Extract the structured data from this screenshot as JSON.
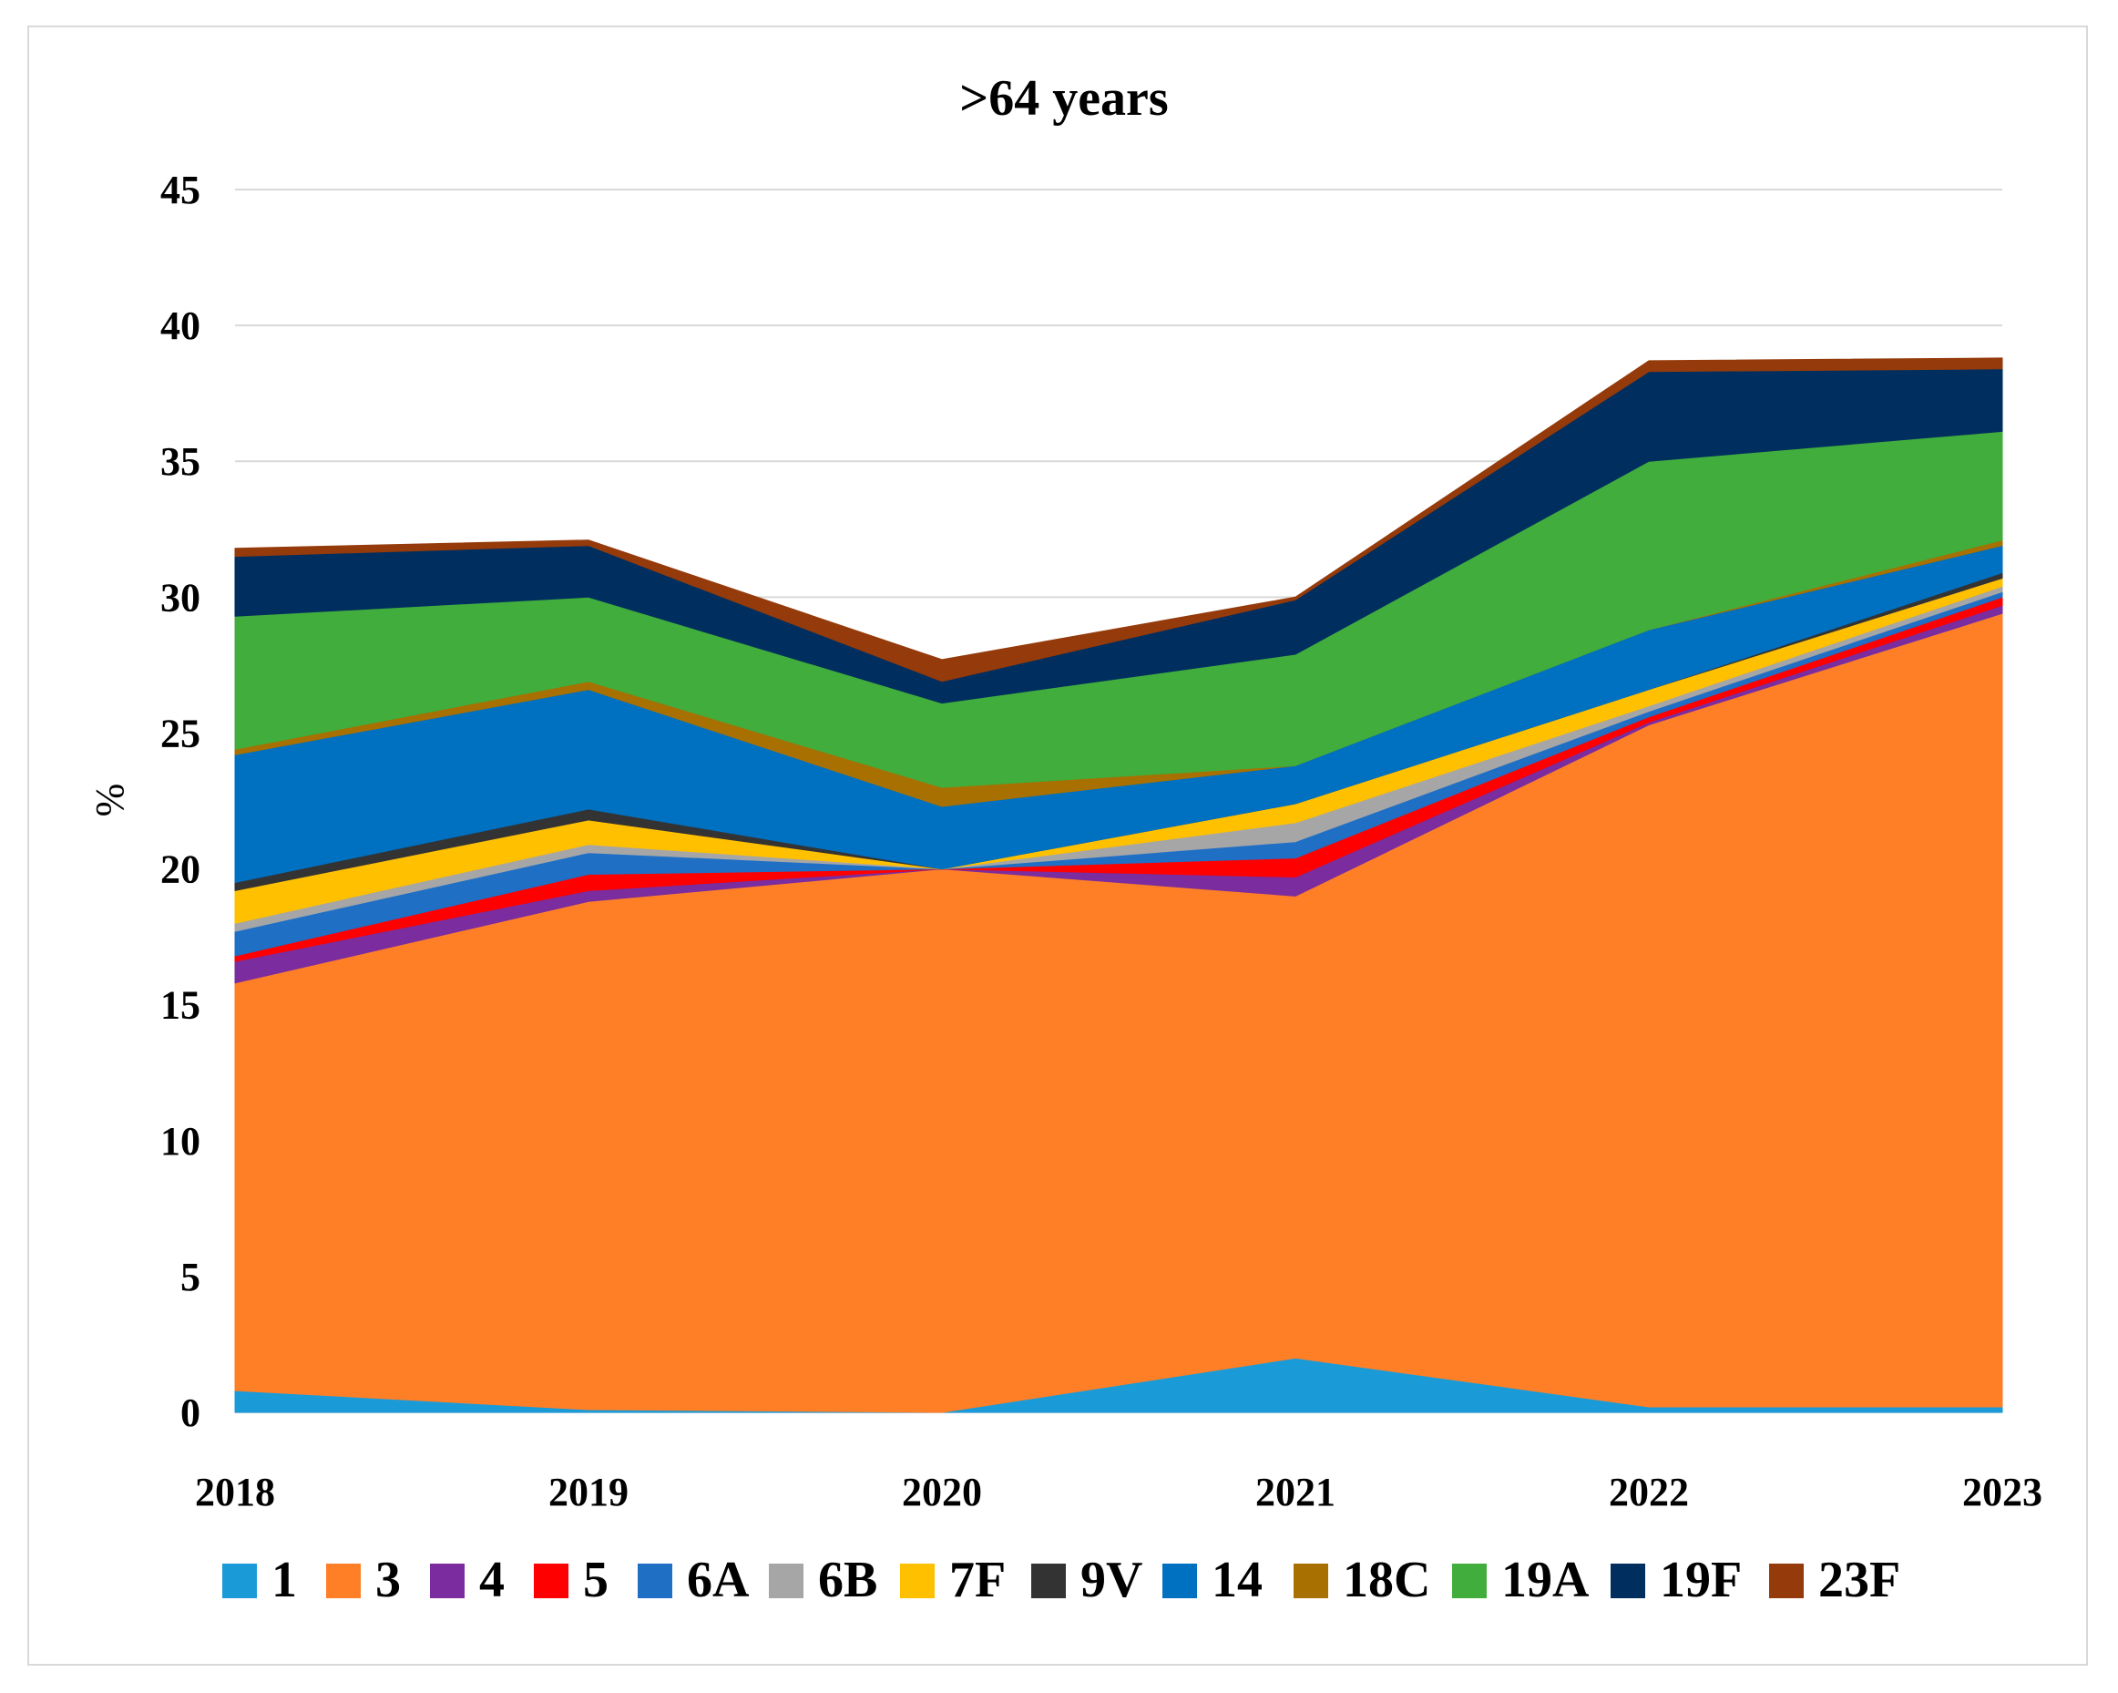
{
  "chart_data": {
    "type": "area",
    "stacked": true,
    "title": ">64 years",
    "xlabel": "",
    "ylabel": "%",
    "ylim": [
      0,
      45
    ],
    "yticks": [
      0,
      5,
      10,
      15,
      20,
      25,
      30,
      35,
      40,
      45
    ],
    "grid": true,
    "legend_position": "bottom",
    "categories": [
      "2018",
      "2019",
      "2020",
      "2021",
      "2022",
      "2023"
    ],
    "series": [
      {
        "name": "1",
        "color": "#1a9bd7",
        "values": [
          0.8,
          0.1,
          0.0,
          2.0,
          0.2,
          0.2
        ]
      },
      {
        "name": "3",
        "color": "#ff7f27",
        "values": [
          15.0,
          18.7,
          20.0,
          17.0,
          25.1,
          29.2
        ]
      },
      {
        "name": "4",
        "color": "#7b2c9e",
        "values": [
          0.8,
          0.4,
          0.0,
          0.7,
          0.1,
          0.3
        ]
      },
      {
        "name": "5",
        "color": "#ff0000",
        "values": [
          0.2,
          0.6,
          0.0,
          0.7,
          0.2,
          0.3
        ]
      },
      {
        "name": "6A",
        "color": "#1f6fc5",
        "values": [
          0.9,
          0.8,
          0.0,
          0.6,
          0.2,
          0.2
        ]
      },
      {
        "name": "6B",
        "color": "#a6a6a6",
        "values": [
          0.3,
          0.3,
          0.0,
          0.7,
          0.2,
          0.2
        ]
      },
      {
        "name": "7F",
        "color": "#ffc000",
        "values": [
          1.2,
          0.9,
          0.0,
          0.7,
          0.6,
          0.3
        ]
      },
      {
        "name": "9V",
        "color": "#333333",
        "values": [
          0.3,
          0.4,
          0.0,
          0.0,
          0.0,
          0.2
        ]
      },
      {
        "name": "14",
        "color": "#0070c0",
        "values": [
          4.7,
          4.4,
          2.3,
          1.4,
          2.2,
          1.0
        ]
      },
      {
        "name": "18C",
        "color": "#a87000",
        "values": [
          0.2,
          0.3,
          0.7,
          0.0,
          0.0,
          0.2
        ]
      },
      {
        "name": "19A",
        "color": "#41ad3c",
        "values": [
          4.9,
          3.1,
          3.1,
          4.1,
          6.2,
          4.0
        ]
      },
      {
        "name": "19F",
        "color": "#002f5f",
        "values": [
          2.2,
          1.9,
          0.8,
          2.0,
          3.3,
          2.3
        ]
      },
      {
        "name": "23F",
        "color": "#953a0a",
        "values": [
          0.3,
          0.2,
          0.8,
          0.1,
          0.4,
          0.4
        ]
      }
    ]
  }
}
